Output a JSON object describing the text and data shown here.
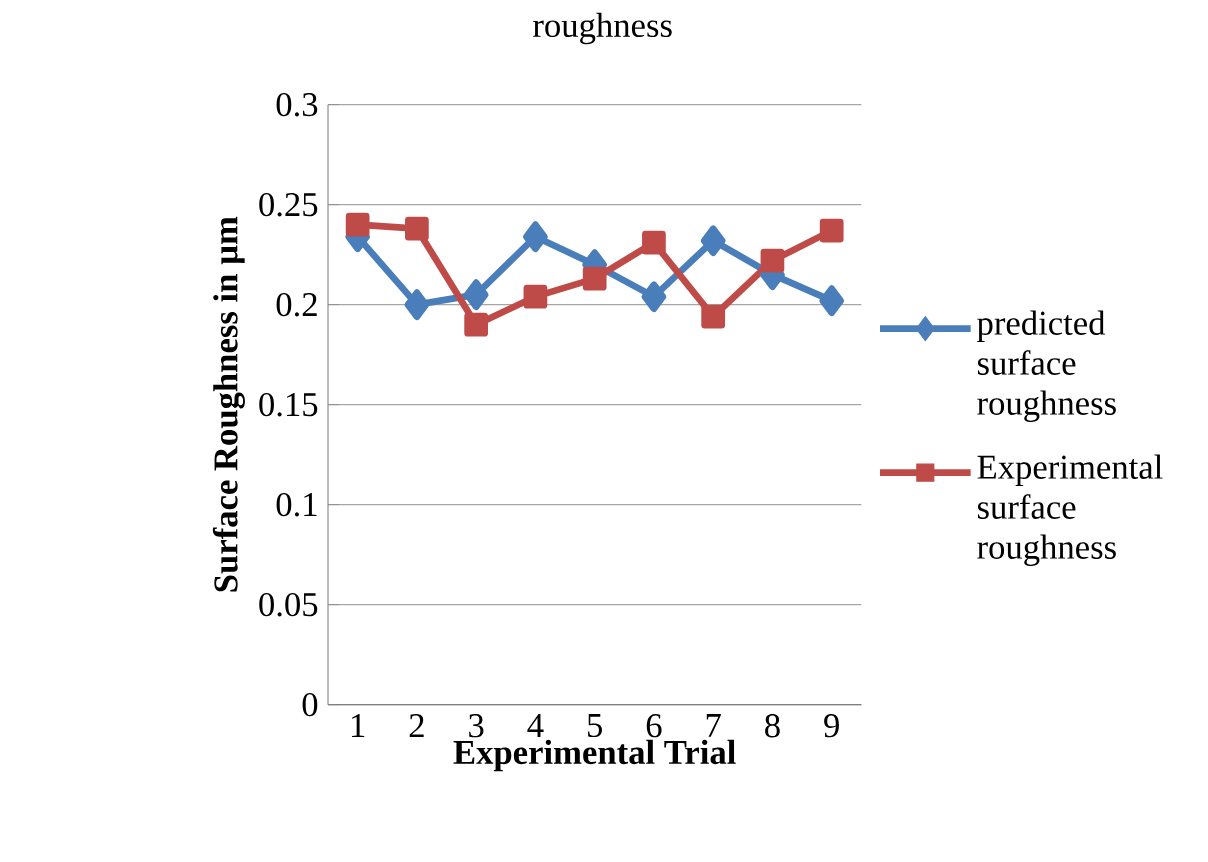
{
  "chart_data": {
    "type": "line",
    "title": "roughness",
    "xlabel": "Experimental  Trial",
    "ylabel": "Surface Roughness in µm",
    "categories": [
      "1",
      "2",
      "3",
      "4",
      "5",
      "6",
      "7",
      "8",
      "9"
    ],
    "ylim": [
      0,
      0.3
    ],
    "yticks": [
      0,
      0.05,
      0.1,
      0.15,
      0.2,
      0.25,
      0.3
    ],
    "grid": "y",
    "legend": "right",
    "series": [
      {
        "name": "predicted surface roughness",
        "color": "#4a7ebb",
        "marker": "diamond",
        "values": [
          0.234,
          0.2,
          0.205,
          0.234,
          0.22,
          0.204,
          0.232,
          0.215,
          0.202
        ]
      },
      {
        "name": "Experimental surface roughness",
        "color": "#be4b48",
        "marker": "square",
        "values": [
          0.24,
          0.238,
          0.19,
          0.204,
          0.213,
          0.231,
          0.194,
          0.222,
          0.237
        ]
      }
    ]
  }
}
